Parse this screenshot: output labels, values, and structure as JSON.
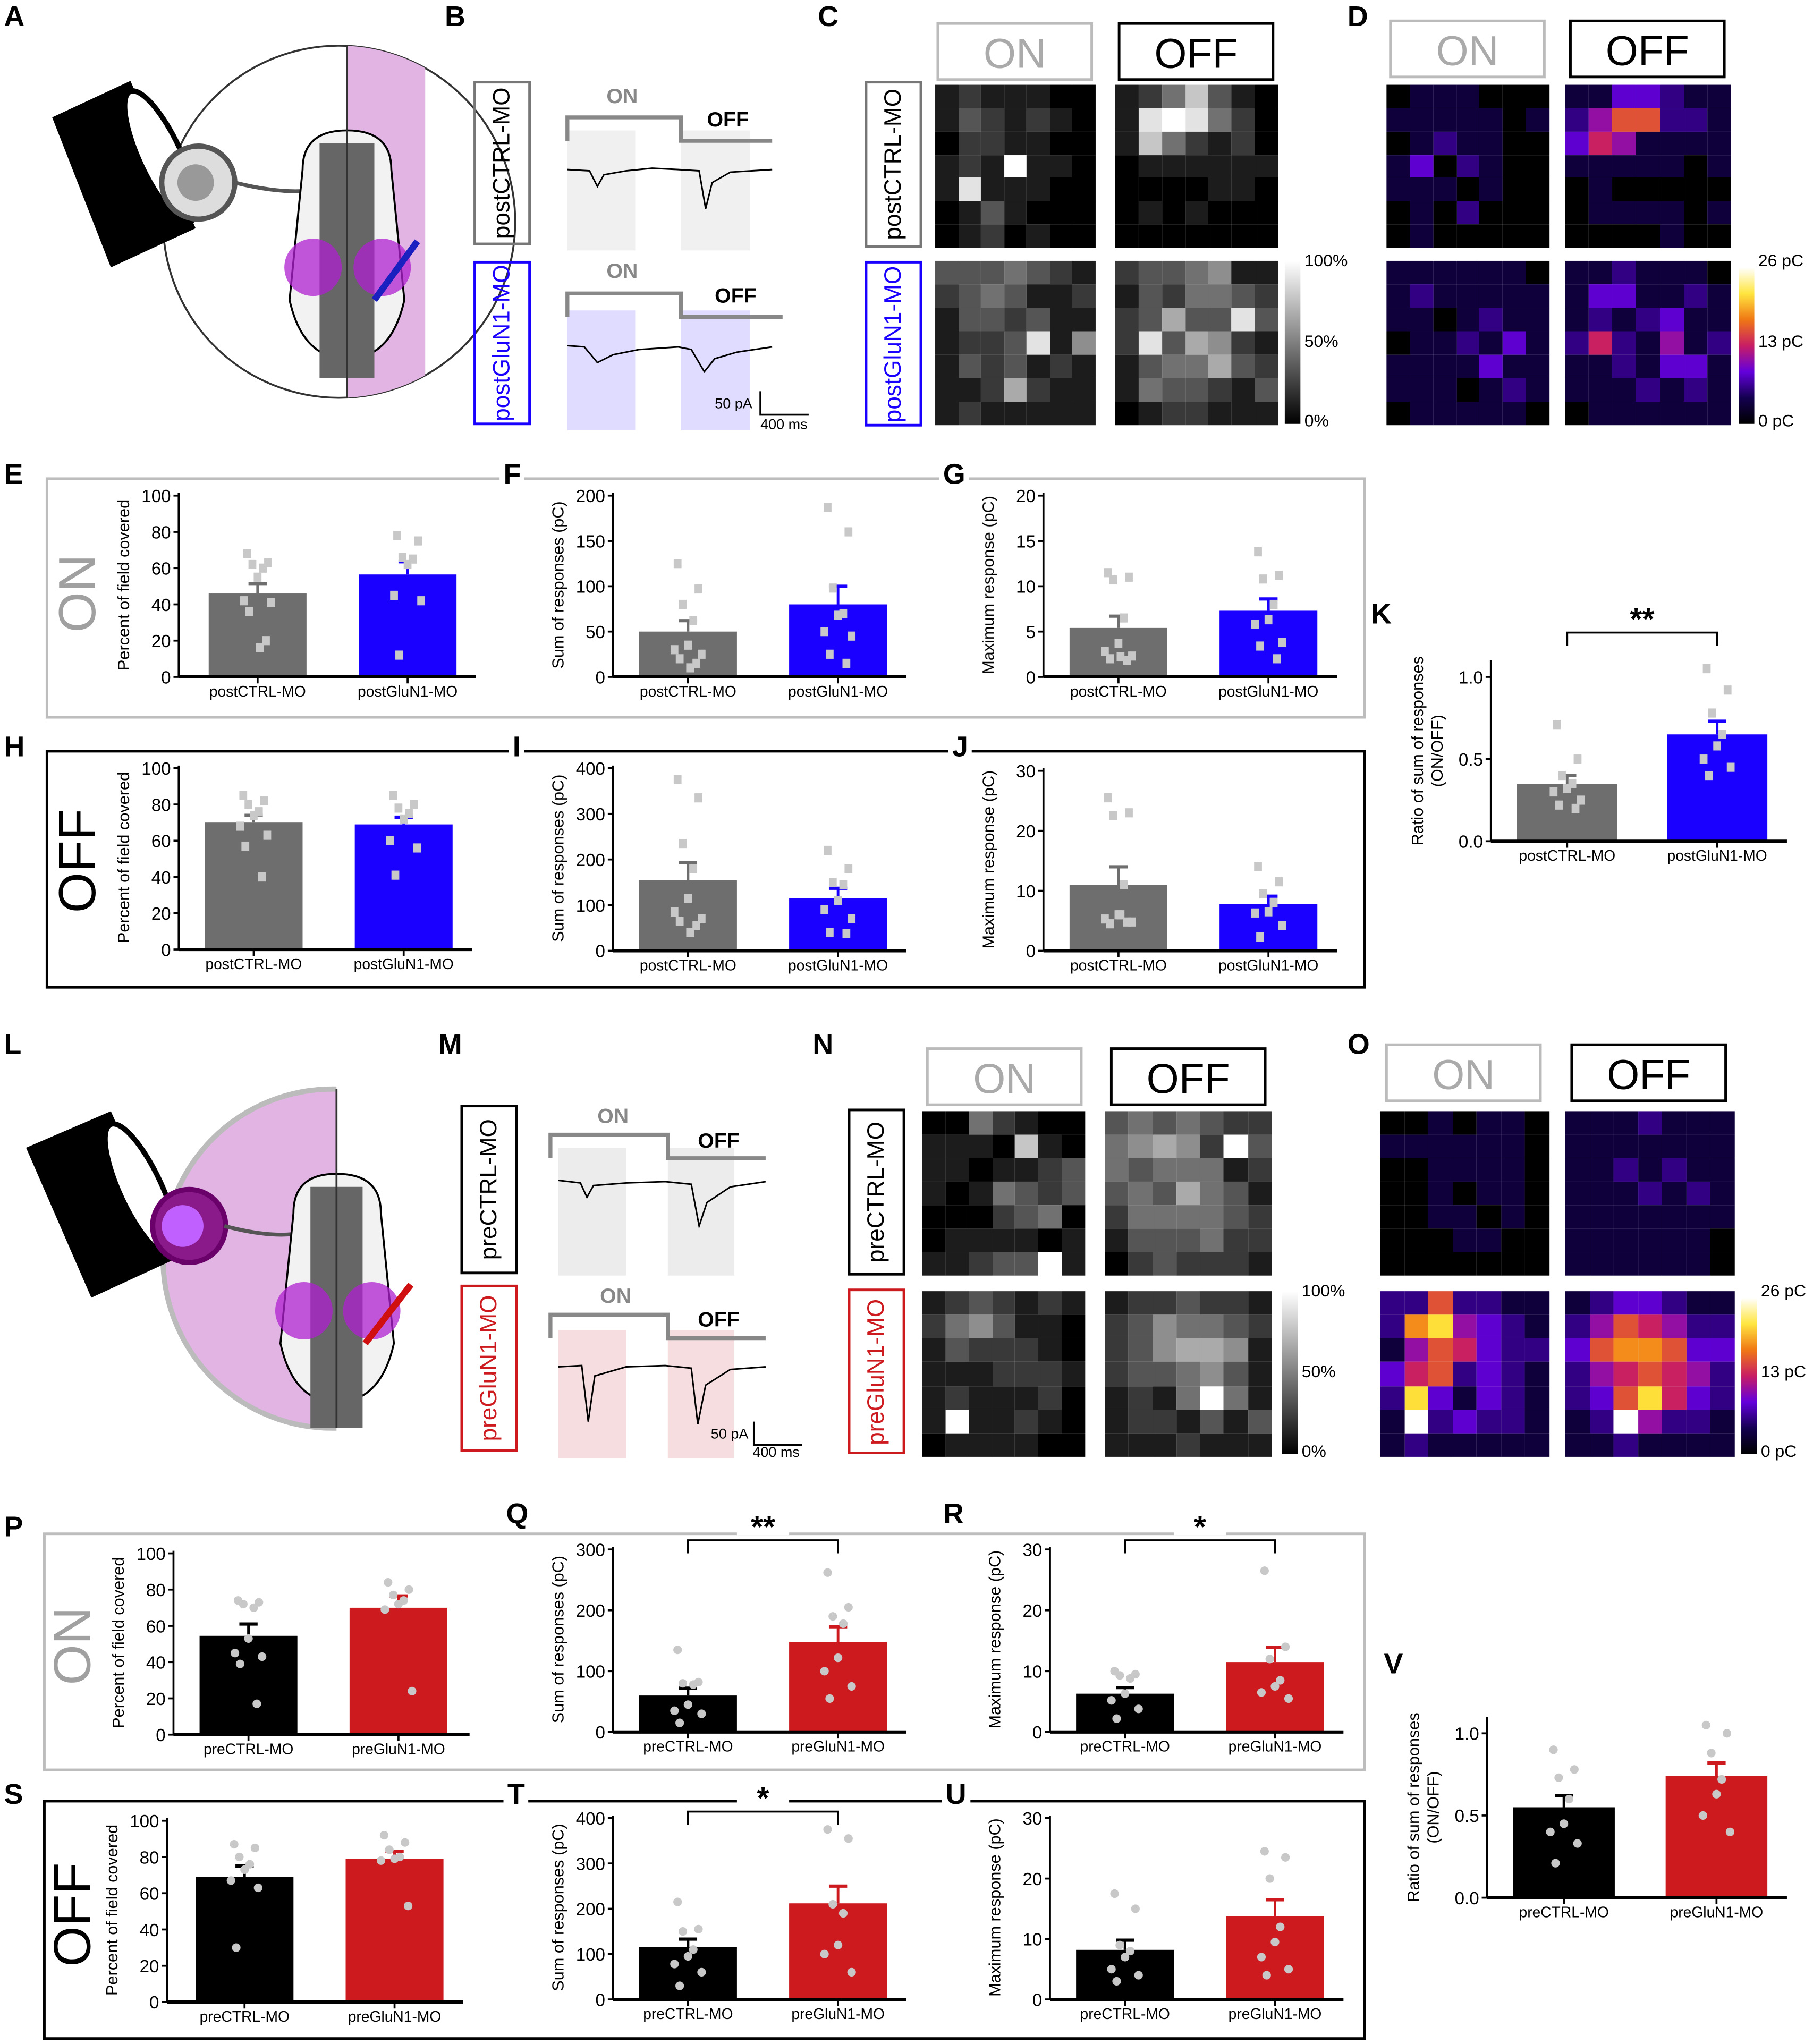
{
  "panel_labels": {
    "A": "A",
    "B": "B",
    "C": "C",
    "D": "D",
    "E": "E",
    "F": "F",
    "G": "G",
    "H": "H",
    "I": "I",
    "J": "J",
    "K": "K",
    "L": "L",
    "M": "M",
    "N": "N",
    "O": "O",
    "P": "P",
    "Q": "Q",
    "R": "R",
    "S": "S",
    "T": "T",
    "U": "U",
    "V": "V"
  },
  "row_labels": {
    "top_on": "ON",
    "top_off": "OFF",
    "bottom_on": "ON",
    "bottom_off": "OFF"
  },
  "colors": {
    "post_ctrl": "#6e6e6e",
    "post_glun1": "#1a00ff",
    "pre_ctrl": "#000000",
    "pre_glun1": "#cc1a1f",
    "points": "#c8c8c8",
    "on_frame": "#bdbdbd",
    "off_frame": "#000000"
  },
  "B": {
    "rows": [
      "postCTRL-MO",
      "postGluN1-MO"
    ],
    "on": "ON",
    "off": "OFF",
    "on2": "ON",
    "off2": "OFF",
    "scale_y": "50 pA",
    "scale_x": "400 ms"
  },
  "M": {
    "rows": [
      "preCTRL-MO",
      "preGluN1-MO"
    ],
    "on": "ON",
    "off": "OFF",
    "on2": "ON",
    "off2": "OFF",
    "scale_y": "50 pA",
    "scale_x": "400 ms"
  },
  "C": {
    "on": "ON",
    "off": "OFF",
    "rows": [
      "postCTRL-MO",
      "postGluN1-MO"
    ],
    "colorbar": [
      "100%",
      "50%",
      "0%"
    ],
    "colormap": "gray",
    "grids": {
      "ctrl_on": [
        "1211100",
        "1321210",
        "0221100",
        "1219110",
        "1811100",
        "0131000",
        "0120100"
      ],
      "ctrl_off": [
        "1247310",
        "1898420",
        "1742120",
        "0111111",
        "0000110",
        "0101000",
        "0000000"
      ],
      "glun_on": [
        "3334321",
        "2343112",
        "1332311",
        "1223815",
        "1323121",
        "1126211",
        "1211111"
      ],
      "glun_off": [
        "2334511",
        "1324432",
        "2363383",
        "2836521",
        "1344632",
        "1433213",
        "0122111"
      ]
    }
  },
  "D": {
    "on": "ON",
    "off": "OFF",
    "colorbar": [
      "26 pC",
      "13 pC",
      "0 pC"
    ],
    "colormap": "fire",
    "grids": {
      "ctrl_on": [
        "0111000",
        "1111101",
        "0121100",
        "1302100",
        "1110100",
        "0102000",
        "0100000"
      ],
      "ctrl_off": [
        "1133211",
        "2466221",
        "3541111",
        "1111101",
        "0100000",
        "0111101",
        "0000100"
      ],
      "glun_on": [
        "1111110",
        "1211111",
        "1101211",
        "0112131",
        "1111311",
        "1110121",
        "0111110"
      ],
      "glun_off": [
        "1121110",
        "1331121",
        "1212311",
        "2521412",
        "1121331",
        "1112121",
        "0111111"
      ]
    }
  },
  "N": {
    "on": "ON",
    "off": "OFF",
    "rows": [
      "preCTRL-MO",
      "preGluN1-MO"
    ],
    "colorbar": [
      "100%",
      "50%",
      "0%"
    ],
    "colormap": "gray",
    "grids": {
      "ctrl_on": [
        "0042100",
        "1110710",
        "1101123",
        "1014323",
        "0002340",
        "0111101",
        "1123391"
      ],
      "ctrl_off": [
        "3434322",
        "4565293",
        "4344412",
        "3436431",
        "2444432",
        "1333422",
        "0232221"
      ],
      "glun_on": [
        "1232121",
        "2453110",
        "1322210",
        "1112221",
        "1211120",
        "1911210",
        "0111100"
      ],
      "glun_off": [
        "1223221",
        "2354432",
        "2356651",
        "2334531",
        "1214941",
        "1221313",
        "1112111"
      ]
    }
  },
  "O": {
    "on": "ON",
    "off": "OFF",
    "colorbar": [
      "26 pC",
      "13 pC",
      "0 pC"
    ],
    "colormap": "fire",
    "grids": {
      "ctrl_on": [
        "0010110",
        "1111110",
        "0011110",
        "0010110",
        "0011010",
        "0001100",
        "0000000"
      ],
      "ctrl_off": [
        "1112111",
        "1111111",
        "1121211",
        "1112121",
        "1111111",
        "1111110",
        "1111110"
      ],
      "glun_on": [
        "2262211",
        "2784321",
        "1465322",
        "3562321",
        "2831321",
        "1923221",
        "1211111"
      ],
      "glun_off": [
        "1233211",
        "2465422",
        "3677633",
        "2456542",
        "2368532",
        "1294221",
        "1121111"
      ]
    }
  },
  "chart_data": [
    {
      "panel": "E",
      "type": "bar",
      "ylabel": "Percent of field covered",
      "ylim": [
        0,
        100
      ],
      "ticks": [
        "0",
        "20",
        "40",
        "60",
        "80",
        "100"
      ],
      "categories": [
        "postCTRL-MO",
        "postGluN1-MO"
      ],
      "marker": "square",
      "series": [
        {
          "mean": 46,
          "sem": 5.5,
          "points": [
            68,
            63,
            62,
            60,
            55,
            42,
            41,
            36,
            20,
            16
          ],
          "color": "#6e6e6e"
        },
        {
          "mean": 56.5,
          "sem": 7,
          "points": [
            78,
            75,
            66,
            65,
            62,
            45,
            42,
            12
          ],
          "color": "#1a00ff"
        }
      ]
    },
    {
      "panel": "F",
      "type": "bar",
      "ylabel": "Sum of responses (pC)",
      "ylim": [
        0,
        200
      ],
      "ticks": [
        "0",
        "50",
        "100",
        "150",
        "200"
      ],
      "categories": [
        "postCTRL-MO",
        "postGluN1-MO"
      ],
      "marker": "square",
      "series": [
        {
          "mean": 50,
          "sem": 12,
          "points": [
            125,
            97,
            80,
            62,
            35,
            30,
            25,
            20,
            15,
            10
          ],
          "color": "#6e6e6e"
        },
        {
          "mean": 80,
          "sem": 20,
          "points": [
            187,
            160,
            98,
            70,
            68,
            50,
            45,
            25,
            15
          ],
          "color": "#1a00ff"
        }
      ]
    },
    {
      "panel": "G",
      "type": "bar",
      "ylabel": "Maximum response (pC)",
      "ylim": [
        0,
        20
      ],
      "ticks": [
        "0",
        "5",
        "10",
        "15",
        "20"
      ],
      "categories": [
        "postCTRL-MO",
        "postGluN1-MO"
      ],
      "marker": "square",
      "series": [
        {
          "mean": 5.4,
          "sem": 1.3,
          "points": [
            11.5,
            11,
            10.7,
            6.5,
            3.7,
            2.8,
            2.3,
            2,
            1.8,
            2.2
          ],
          "color": "#6e6e6e"
        },
        {
          "mean": 7.3,
          "sem": 1.3,
          "points": [
            13.8,
            11.2,
            10.8,
            8,
            6.3,
            5.8,
            3.8,
            3.4,
            2
          ],
          "color": "#1a00ff"
        }
      ]
    },
    {
      "panel": "H",
      "type": "bar",
      "ylabel": "Percent of field covered",
      "ylim": [
        0,
        100
      ],
      "ticks": [
        "0",
        "20",
        "40",
        "60",
        "80",
        "100"
      ],
      "categories": [
        "postCTRL-MO",
        "postGluN1-MO"
      ],
      "marker": "square",
      "series": [
        {
          "mean": 70,
          "sem": 4,
          "points": [
            85,
            82,
            80,
            76,
            74,
            68,
            63,
            57,
            40
          ],
          "color": "#6e6e6e"
        },
        {
          "mean": 69,
          "sem": 4,
          "points": [
            85,
            80,
            78,
            75,
            72,
            60,
            56,
            41
          ],
          "color": "#1a00ff"
        }
      ]
    },
    {
      "panel": "I",
      "type": "bar",
      "ylabel": "Sum of responses (pC)",
      "ylim": [
        0,
        400
      ],
      "ticks": [
        "0",
        "100",
        "200",
        "300",
        "400"
      ],
      "categories": [
        "postCTRL-MO",
        "postGluN1-MO"
      ],
      "marker": "square",
      "series": [
        {
          "mean": 155,
          "sem": 38,
          "points": [
            375,
            335,
            235,
            180,
            115,
            85,
            70,
            65,
            55,
            40
          ],
          "color": "#6e6e6e"
        },
        {
          "mean": 115,
          "sem": 22,
          "points": [
            220,
            180,
            150,
            145,
            110,
            90,
            70,
            40,
            38
          ],
          "color": "#1a00ff"
        }
      ]
    },
    {
      "panel": "J",
      "type": "bar",
      "ylabel": "Maximum response (pC)",
      "ylim": [
        0,
        30
      ],
      "ticks": [
        "0",
        "10",
        "20",
        "30"
      ],
      "categories": [
        "postCTRL-MO",
        "postGluN1-MO"
      ],
      "marker": "square",
      "series": [
        {
          "mean": 11,
          "sem": 3,
          "points": [
            25.5,
            23,
            22.5,
            11,
            6,
            5.3,
            4.8,
            4.5,
            4.8,
            6
          ],
          "color": "#6e6e6e"
        },
        {
          "mean": 7.8,
          "sem": 1.3,
          "points": [
            14,
            11.5,
            9.5,
            8,
            6.5,
            6.3,
            4.2,
            2.3
          ],
          "color": "#1a00ff"
        }
      ]
    },
    {
      "panel": "K",
      "type": "bar",
      "ylabel": "Ratio of sum of responses",
      "ylabel2": "(ON/OFF)",
      "ylim": [
        0,
        1.0
      ],
      "axis_max": 1.1,
      "ticks": [
        "0.0",
        "0.5",
        "1.0"
      ],
      "categories": [
        "postCTRL-MO",
        "postGluN1-MO"
      ],
      "marker": "square",
      "significance": "**",
      "series": [
        {
          "mean": 0.35,
          "sem": 0.05,
          "points": [
            0.71,
            0.5,
            0.4,
            0.35,
            0.32,
            0.3,
            0.25,
            0.22,
            0.2
          ],
          "color": "#6e6e6e"
        },
        {
          "mean": 0.65,
          "sem": 0.08,
          "points": [
            1.05,
            0.92,
            0.78,
            0.65,
            0.58,
            0.5,
            0.45,
            0.4
          ],
          "color": "#1a00ff"
        }
      ]
    },
    {
      "panel": "P",
      "type": "bar",
      "ylabel": "Percent of field covered",
      "ylim": [
        0,
        100
      ],
      "ticks": [
        "0",
        "20",
        "40",
        "60",
        "80",
        "100"
      ],
      "categories": [
        "preCTRL-MO",
        "preGluN1-MO"
      ],
      "marker": "circle",
      "series": [
        {
          "mean": 54.5,
          "sem": 6.5,
          "points": [
            74,
            73,
            72,
            70,
            53,
            45,
            43,
            39,
            17
          ],
          "color": "#000000"
        },
        {
          "mean": 70,
          "sem": 6.5,
          "points": [
            84,
            80,
            77,
            74,
            72,
            69,
            24
          ],
          "color": "#cc1a1f"
        }
      ]
    },
    {
      "panel": "Q",
      "type": "bar",
      "ylabel": "Sum of responses (pC)",
      "ylim": [
        0,
        300
      ],
      "ticks": [
        "0",
        "100",
        "200",
        "300"
      ],
      "categories": [
        "preCTRL-MO",
        "preGluN1-MO"
      ],
      "marker": "circle",
      "significance": "**",
      "series": [
        {
          "mean": 60,
          "sem": 12,
          "points": [
            135,
            82,
            80,
            78,
            45,
            35,
            30,
            15
          ],
          "color": "#000000"
        },
        {
          "mean": 148,
          "sem": 25,
          "points": [
            262,
            205,
            190,
            178,
            122,
            100,
            75,
            55
          ],
          "color": "#cc1a1f"
        }
      ]
    },
    {
      "panel": "R",
      "type": "bar",
      "ylabel": "Maximum response (pC)",
      "ylim": [
        0,
        30
      ],
      "ticks": [
        "0",
        "10",
        "20",
        "30"
      ],
      "categories": [
        "preCTRL-MO",
        "preGluN1-MO"
      ],
      "marker": "circle",
      "significance": "*",
      "series": [
        {
          "mean": 6.3,
          "sem": 1,
          "points": [
            10,
            9.5,
            9.3,
            8.8,
            6.3,
            5.2,
            3.8,
            2.2
          ],
          "color": "#000000"
        },
        {
          "mean": 11.5,
          "sem": 2.4,
          "points": [
            26.5,
            14,
            12,
            8.5,
            7.5,
            6.5,
            5.5
          ],
          "color": "#cc1a1f"
        }
      ]
    },
    {
      "panel": "S",
      "type": "bar",
      "ylabel": "Percent of field covered",
      "ylim": [
        0,
        100
      ],
      "ticks": [
        "0",
        "20",
        "40",
        "60",
        "80",
        "100"
      ],
      "categories": [
        "preCTRL-MO",
        "preGluN1-MO"
      ],
      "marker": "circle",
      "series": [
        {
          "mean": 69,
          "sem": 6,
          "points": [
            87,
            85,
            80,
            76,
            73,
            67,
            63,
            30
          ],
          "color": "#000000"
        },
        {
          "mean": 79,
          "sem": 4,
          "points": [
            92,
            88,
            84,
            80,
            79,
            78,
            53
          ],
          "color": "#cc1a1f"
        }
      ]
    },
    {
      "panel": "T",
      "type": "bar",
      "ylabel": "Sum of responses (pC)",
      "ylim": [
        0,
        400
      ],
      "ticks": [
        "0",
        "100",
        "200",
        "300",
        "400"
      ],
      "categories": [
        "preCTRL-MO",
        "preGluN1-MO"
      ],
      "marker": "circle",
      "significance": "*",
      "series": [
        {
          "mean": 115,
          "sem": 18,
          "points": [
            215,
            155,
            150,
            110,
            95,
            78,
            60,
            30
          ],
          "color": "#000000"
        },
        {
          "mean": 212,
          "sem": 38,
          "points": [
            375,
            355,
            210,
            190,
            120,
            100,
            60
          ],
          "color": "#cc1a1f"
        }
      ]
    },
    {
      "panel": "U",
      "type": "bar",
      "ylabel": "Maximum response (pC)",
      "ylim": [
        0,
        30
      ],
      "ticks": [
        "0",
        "10",
        "20",
        "30"
      ],
      "categories": [
        "preCTRL-MO",
        "preGluN1-MO"
      ],
      "marker": "circle",
      "series": [
        {
          "mean": 8.2,
          "sem": 1.6,
          "points": [
            17.5,
            15,
            9,
            8,
            7,
            5,
            4,
            3
          ],
          "color": "#000000"
        },
        {
          "mean": 13.8,
          "sem": 2.7,
          "points": [
            24.5,
            23.5,
            20,
            12,
            9.5,
            7,
            5,
            4
          ],
          "color": "#cc1a1f"
        }
      ]
    },
    {
      "panel": "V",
      "type": "bar",
      "ylabel": "Ratio of sum of responses",
      "ylabel2": "(ON/OFF)",
      "ylim": [
        0,
        1.0
      ],
      "axis_max": 1.1,
      "ticks": [
        "0.0",
        "0.5",
        "1.0"
      ],
      "categories": [
        "preCTRL-MO",
        "preGluN1-MO"
      ],
      "marker": "circle",
      "series": [
        {
          "mean": 0.55,
          "sem": 0.07,
          "points": [
            0.9,
            0.78,
            0.73,
            0.6,
            0.45,
            0.4,
            0.33,
            0.21
          ],
          "color": "#000000"
        },
        {
          "mean": 0.74,
          "sem": 0.08,
          "points": [
            1.05,
            1.0,
            0.88,
            0.72,
            0.63,
            0.5,
            0.4
          ],
          "color": "#cc1a1f"
        }
      ]
    }
  ]
}
